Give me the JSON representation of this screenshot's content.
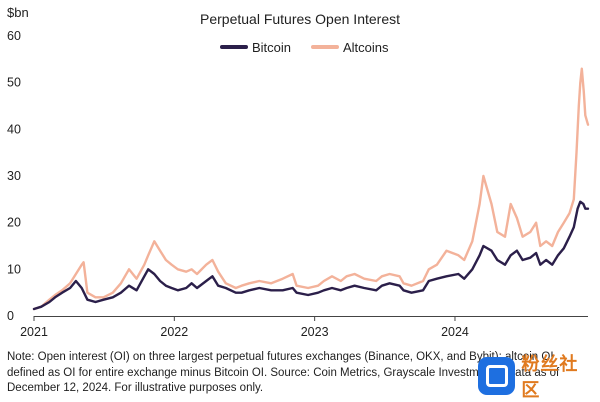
{
  "chart_data": {
    "type": "line",
    "title": "Perpetual Futures Open Interest",
    "ylabel": "$bn",
    "ylim": [
      0,
      60
    ],
    "yticks": [
      0,
      10,
      20,
      30,
      40,
      50,
      60
    ],
    "xlim": [
      "2021-01-01",
      "2024-12-12"
    ],
    "xticks": [
      "2021",
      "2022",
      "2023",
      "2024"
    ],
    "xtick_dates": [
      "2021-01-01",
      "2022-01-01",
      "2023-01-01",
      "2024-01-01"
    ],
    "grid": false,
    "legend": "top-center",
    "series": [
      {
        "name": "Bitcoin",
        "color": "#2b1f4a",
        "points": [
          [
            "2021-01-01",
            1.5
          ],
          [
            "2021-01-20",
            2
          ],
          [
            "2021-02-10",
            3
          ],
          [
            "2021-02-25",
            4
          ],
          [
            "2021-03-15",
            5
          ],
          [
            "2021-04-05",
            6
          ],
          [
            "2021-04-20",
            7.5
          ],
          [
            "2021-05-05",
            6
          ],
          [
            "2021-05-20",
            3.5
          ],
          [
            "2021-06-10",
            3
          ],
          [
            "2021-07-01",
            3.5
          ],
          [
            "2021-07-25",
            4
          ],
          [
            "2021-08-15",
            5
          ],
          [
            "2021-09-05",
            6.5
          ],
          [
            "2021-09-25",
            5.5
          ],
          [
            "2021-10-15",
            8.5
          ],
          [
            "2021-10-25",
            10
          ],
          [
            "2021-11-10",
            9
          ],
          [
            "2021-11-25",
            7.5
          ],
          [
            "2021-12-10",
            6.5
          ],
          [
            "2021-12-25",
            6
          ],
          [
            "2022-01-10",
            5.5
          ],
          [
            "2022-02-01",
            6
          ],
          [
            "2022-02-15",
            7
          ],
          [
            "2022-03-01",
            6
          ],
          [
            "2022-03-25",
            7.5
          ],
          [
            "2022-04-10",
            8.5
          ],
          [
            "2022-04-25",
            6.5
          ],
          [
            "2022-05-15",
            6
          ],
          [
            "2022-06-10",
            5
          ],
          [
            "2022-06-25",
            5
          ],
          [
            "2022-07-15",
            5.5
          ],
          [
            "2022-08-10",
            6
          ],
          [
            "2022-09-10",
            5.5
          ],
          [
            "2022-10-10",
            5.5
          ],
          [
            "2022-11-05",
            6
          ],
          [
            "2022-11-15",
            5
          ],
          [
            "2022-12-15",
            4.5
          ],
          [
            "2023-01-10",
            5
          ],
          [
            "2023-01-25",
            5.5
          ],
          [
            "2023-02-15",
            6
          ],
          [
            "2023-03-10",
            5.5
          ],
          [
            "2023-03-25",
            6
          ],
          [
            "2023-04-15",
            6.5
          ],
          [
            "2023-05-10",
            6
          ],
          [
            "2023-06-10",
            5.5
          ],
          [
            "2023-06-25",
            6.5
          ],
          [
            "2023-07-15",
            7
          ],
          [
            "2023-08-10",
            6.5
          ],
          [
            "2023-08-20",
            5.5
          ],
          [
            "2023-09-10",
            5
          ],
          [
            "2023-10-10",
            5.5
          ],
          [
            "2023-10-25",
            7.5
          ],
          [
            "2023-11-15",
            8
          ],
          [
            "2023-12-10",
            8.5
          ],
          [
            "2024-01-10",
            9
          ],
          [
            "2024-01-25",
            8
          ],
          [
            "2024-02-15",
            10
          ],
          [
            "2024-03-05",
            13
          ],
          [
            "2024-03-15",
            15
          ],
          [
            "2024-04-05",
            14
          ],
          [
            "2024-04-20",
            12
          ],
          [
            "2024-05-10",
            11
          ],
          [
            "2024-05-25",
            13
          ],
          [
            "2024-06-10",
            14
          ],
          [
            "2024-06-25",
            12
          ],
          [
            "2024-07-15",
            12.5
          ],
          [
            "2024-07-30",
            13.5
          ],
          [
            "2024-08-10",
            11
          ],
          [
            "2024-08-25",
            12
          ],
          [
            "2024-09-10",
            11
          ],
          [
            "2024-09-25",
            13
          ],
          [
            "2024-10-10",
            14.5
          ],
          [
            "2024-10-25",
            17
          ],
          [
            "2024-11-05",
            19
          ],
          [
            "2024-11-15",
            23
          ],
          [
            "2024-11-22",
            24.5
          ],
          [
            "2024-11-30",
            24
          ],
          [
            "2024-12-05",
            23
          ],
          [
            "2024-12-12",
            23
          ]
        ]
      },
      {
        "name": "Altcoins",
        "color": "#f3b29a",
        "points": [
          [
            "2021-01-01",
            1.5
          ],
          [
            "2021-01-20",
            2
          ],
          [
            "2021-02-10",
            3.5
          ],
          [
            "2021-02-25",
            4.5
          ],
          [
            "2021-03-15",
            5.5
          ],
          [
            "2021-04-05",
            7
          ],
          [
            "2021-04-20",
            9
          ],
          [
            "2021-05-05",
            11
          ],
          [
            "2021-05-10",
            11.5
          ],
          [
            "2021-05-20",
            5
          ],
          [
            "2021-06-10",
            4
          ],
          [
            "2021-07-01",
            4
          ],
          [
            "2021-07-25",
            5
          ],
          [
            "2021-08-15",
            7
          ],
          [
            "2021-09-05",
            10
          ],
          [
            "2021-09-25",
            8
          ],
          [
            "2021-10-15",
            11
          ],
          [
            "2021-10-25",
            13
          ],
          [
            "2021-11-10",
            16
          ],
          [
            "2021-11-25",
            14
          ],
          [
            "2021-12-10",
            12
          ],
          [
            "2021-12-25",
            11
          ],
          [
            "2022-01-10",
            10
          ],
          [
            "2022-02-01",
            9.5
          ],
          [
            "2022-02-15",
            10
          ],
          [
            "2022-03-01",
            9
          ],
          [
            "2022-03-25",
            11
          ],
          [
            "2022-04-10",
            12
          ],
          [
            "2022-04-25",
            9.5
          ],
          [
            "2022-05-15",
            7
          ],
          [
            "2022-06-10",
            6
          ],
          [
            "2022-06-25",
            6.5
          ],
          [
            "2022-07-15",
            7
          ],
          [
            "2022-08-10",
            7.5
          ],
          [
            "2022-09-10",
            7
          ],
          [
            "2022-10-10",
            8
          ],
          [
            "2022-11-05",
            9
          ],
          [
            "2022-11-15",
            6.5
          ],
          [
            "2022-12-15",
            6
          ],
          [
            "2023-01-10",
            6.5
          ],
          [
            "2023-01-25",
            7.5
          ],
          [
            "2023-02-15",
            8.5
          ],
          [
            "2023-03-10",
            7.5
          ],
          [
            "2023-03-25",
            8.5
          ],
          [
            "2023-04-15",
            9
          ],
          [
            "2023-05-10",
            8
          ],
          [
            "2023-06-10",
            7.5
          ],
          [
            "2023-06-25",
            8.5
          ],
          [
            "2023-07-15",
            9
          ],
          [
            "2023-08-10",
            8.5
          ],
          [
            "2023-08-20",
            7
          ],
          [
            "2023-09-10",
            6.5
          ],
          [
            "2023-10-10",
            7.5
          ],
          [
            "2023-10-25",
            10
          ],
          [
            "2023-11-15",
            11
          ],
          [
            "2023-12-10",
            14
          ],
          [
            "2024-01-10",
            13
          ],
          [
            "2024-01-25",
            12
          ],
          [
            "2024-02-15",
            16
          ],
          [
            "2024-03-05",
            24
          ],
          [
            "2024-03-15",
            30
          ],
          [
            "2024-04-05",
            24
          ],
          [
            "2024-04-20",
            18
          ],
          [
            "2024-05-10",
            17
          ],
          [
            "2024-05-25",
            24
          ],
          [
            "2024-06-10",
            21
          ],
          [
            "2024-06-25",
            17
          ],
          [
            "2024-07-15",
            18
          ],
          [
            "2024-07-30",
            20
          ],
          [
            "2024-08-10",
            15
          ],
          [
            "2024-08-25",
            16
          ],
          [
            "2024-09-10",
            15
          ],
          [
            "2024-09-25",
            18
          ],
          [
            "2024-10-10",
            20
          ],
          [
            "2024-10-25",
            22
          ],
          [
            "2024-11-05",
            25
          ],
          [
            "2024-11-12",
            35
          ],
          [
            "2024-11-18",
            45
          ],
          [
            "2024-11-22",
            50
          ],
          [
            "2024-11-26",
            53
          ],
          [
            "2024-12-01",
            48
          ],
          [
            "2024-12-05",
            43
          ],
          [
            "2024-12-12",
            41
          ]
        ]
      }
    ]
  },
  "note": "Note: Open interest (OI) on three largest perpetual futures exchanges (Binance, OKX, and Bybit); altcoin OI defined as OI for entire exchange minus Bitcoin OI. Source: Coin Metrics, Grayscale Investments. Data as of December 12, 2024. For illustrative purposes only.",
  "watermark_text": "粉丝社区"
}
